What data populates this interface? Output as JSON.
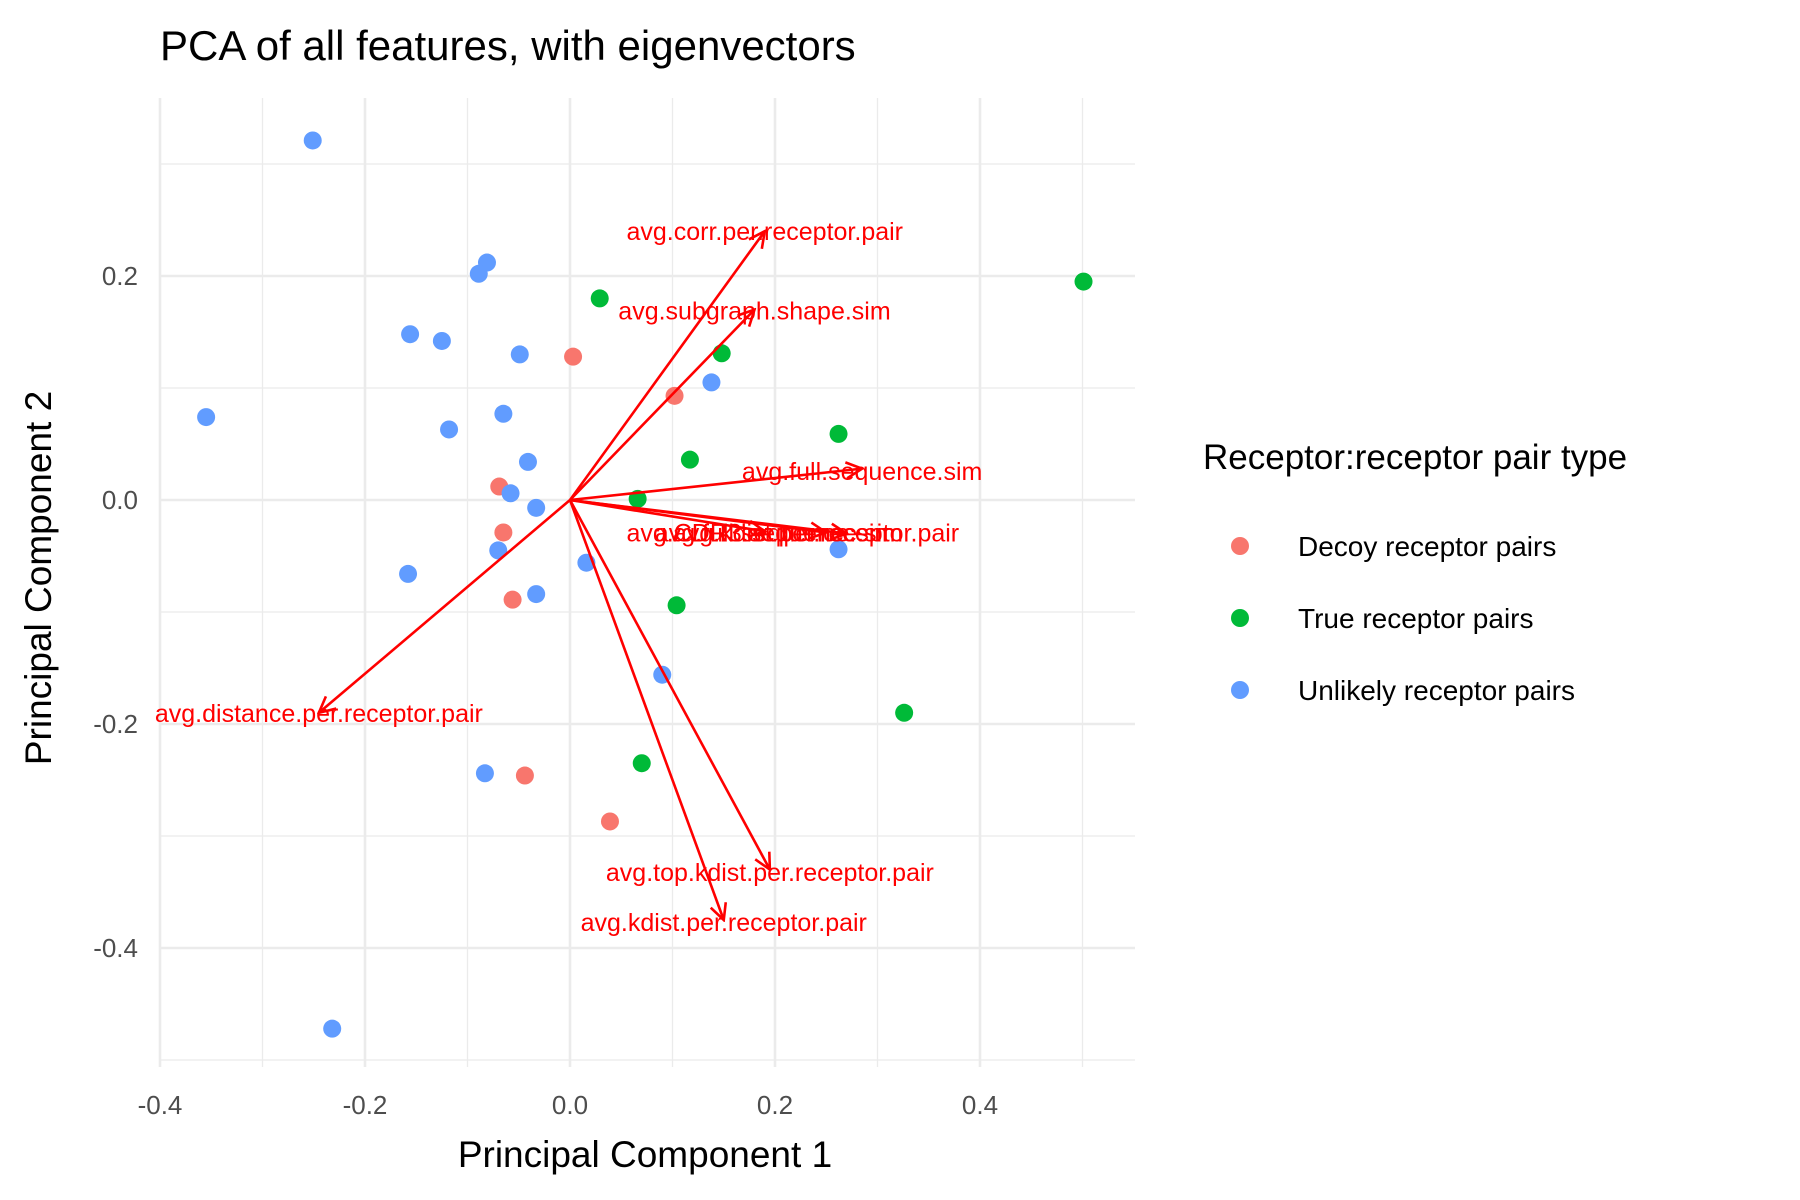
{
  "chart_data": {
    "type": "scatter",
    "title": "PCA of all features, with eigenvectors",
    "xlabel": "Principal Component 1",
    "ylabel": "Principal Component 2",
    "xlim": [
      -0.4,
      0.54
    ],
    "ylim": [
      -0.5,
      0.34
    ],
    "x_ticks": [
      -0.4,
      -0.2,
      0.0,
      0.2,
      0.4
    ],
    "x_tick_labels": [
      "-0.4",
      "-0.2",
      "0.0",
      "0.2",
      "0.4"
    ],
    "y_ticks": [
      -0.4,
      -0.2,
      0.0,
      0.2
    ],
    "y_tick_labels": [
      "-0.4",
      "-0.2",
      "0.0",
      "0.2"
    ],
    "grid": true,
    "legend_position": "right",
    "legend_title": "Receptor:receptor pair type",
    "series": [
      {
        "name": "Decoy receptor pairs",
        "color": "#F8766D",
        "points": [
          [
            0.003,
            0.128
          ],
          [
            0.102,
            0.093
          ],
          [
            -0.069,
            0.012
          ],
          [
            -0.065,
            -0.029
          ],
          [
            -0.056,
            -0.089
          ],
          [
            -0.044,
            -0.246
          ],
          [
            0.039,
            -0.287
          ]
        ]
      },
      {
        "name": "True receptor pairs",
        "color": "#00BA38",
        "points": [
          [
            0.501,
            0.195
          ],
          [
            0.029,
            0.18
          ],
          [
            0.148,
            0.131
          ],
          [
            0.262,
            0.059
          ],
          [
            0.117,
            0.036
          ],
          [
            0.066,
            0.001
          ],
          [
            0.104,
            -0.094
          ],
          [
            0.326,
            -0.19
          ],
          [
            0.07,
            -0.235
          ]
        ]
      },
      {
        "name": "Unlikely receptor pairs",
        "color": "#619CFF",
        "points": [
          [
            -0.251,
            0.321
          ],
          [
            -0.081,
            0.212
          ],
          [
            -0.089,
            0.202
          ],
          [
            -0.156,
            0.148
          ],
          [
            -0.125,
            0.142
          ],
          [
            -0.049,
            0.13
          ],
          [
            0.138,
            0.105
          ],
          [
            -0.355,
            0.074
          ],
          [
            -0.065,
            0.077
          ],
          [
            -0.118,
            0.063
          ],
          [
            -0.041,
            0.034
          ],
          [
            -0.058,
            0.006
          ],
          [
            -0.033,
            -0.007
          ],
          [
            -0.07,
            -0.045
          ],
          [
            0.016,
            -0.056
          ],
          [
            0.262,
            -0.044
          ],
          [
            -0.158,
            -0.066
          ],
          [
            -0.033,
            -0.084
          ],
          [
            0.09,
            -0.156
          ],
          [
            -0.083,
            -0.244
          ],
          [
            -0.232,
            -0.472
          ]
        ]
      }
    ],
    "vectors": [
      {
        "label": "avg.corr.per.receptor.pair",
        "x": 0.19,
        "y": 0.24,
        "label_x": 0.19,
        "label_y": 0.24
      },
      {
        "label": "avg.subgraph.shape.sim",
        "x": 0.18,
        "y": 0.17,
        "label_x": 0.18,
        "label_y": 0.169
      },
      {
        "label": "avg.full.sequence.sim",
        "x": 0.285,
        "y": 0.028,
        "label_x": 0.285,
        "label_y": 0.026
      },
      {
        "label": "avg.CDR3.sequence.sim",
        "x": 0.19,
        "y": -0.028,
        "label_x": 0.19,
        "label_y": -0.029
      },
      {
        "label": "avg.kdist.per.receptor.pair",
        "x": 0.27,
        "y": -0.03,
        "label_x": 0.24,
        "label_y": -0.029
      },
      {
        "label": "avg.full.sequence.sim",
        "x": 0.25,
        "y": -0.029,
        "label_x": 0.2,
        "label_y": -0.029
      },
      {
        "label": "avg.distance.per.receptor.pair",
        "x": -0.245,
        "y": -0.19,
        "label_x": -0.245,
        "label_y": -0.19
      },
      {
        "label": "avg.top.kdist.per.receptor.pair",
        "x": 0.195,
        "y": -0.33,
        "label_x": 0.195,
        "label_y": -0.332
      },
      {
        "label": "avg.kdist.per.receptor.pair",
        "x": 0.15,
        "y": -0.375,
        "label_x": 0.15,
        "label_y": -0.377
      }
    ]
  }
}
